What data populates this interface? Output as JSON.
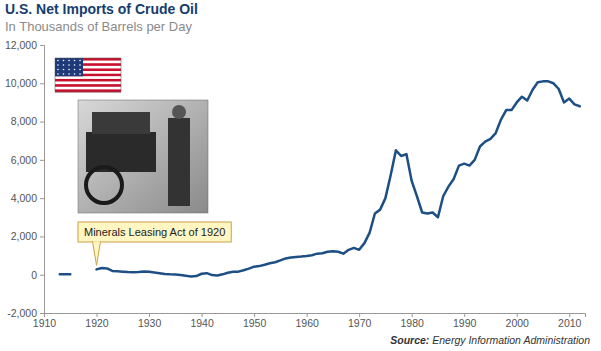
{
  "chart_data": {
    "type": "line",
    "title": "U.S. Net Imports of Crude Oil",
    "subtitle": "In Thousands of Barrels per Day",
    "source": "Source: Energy Information Administration",
    "color": "#1d4f85",
    "x": [
      1913,
      1914,
      1915,
      1916,
      1917,
      1918,
      1919,
      1920,
      1921,
      1922,
      1923,
      1924,
      1925,
      1926,
      1927,
      1928,
      1929,
      1930,
      1931,
      1932,
      1933,
      1934,
      1935,
      1936,
      1937,
      1938,
      1939,
      1940,
      1941,
      1942,
      1943,
      1944,
      1945,
      1946,
      1947,
      1948,
      1949,
      1950,
      1951,
      1952,
      1953,
      1954,
      1955,
      1956,
      1957,
      1958,
      1959,
      1960,
      1961,
      1962,
      1963,
      1964,
      1965,
      1966,
      1967,
      1968,
      1969,
      1970,
      1971,
      1972,
      1973,
      1974,
      1975,
      1976,
      1977,
      1978,
      1979,
      1980,
      1981,
      1982,
      1983,
      1984,
      1985,
      1986,
      1987,
      1988,
      1989,
      1990,
      1991,
      1992,
      1993,
      1994,
      1995,
      1996,
      1997,
      1998,
      1999,
      2000,
      2001,
      2002,
      2003,
      2004,
      2005,
      2006,
      2007,
      2008,
      2009,
      2010,
      2011,
      2012
    ],
    "values": [
      30,
      30,
      20,
      null,
      null,
      null,
      null,
      280,
      350,
      330,
      200,
      180,
      160,
      140,
      130,
      140,
      170,
      150,
      120,
      80,
      40,
      20,
      10,
      -20,
      -50,
      -90,
      -70,
      50,
      80,
      -20,
      -40,
      20,
      100,
      150,
      160,
      230,
      320,
      420,
      450,
      520,
      600,
      650,
      750,
      850,
      900,
      930,
      950,
      980,
      1020,
      1100,
      1120,
      1200,
      1230,
      1200,
      1100,
      1300,
      1400,
      1300,
      1650,
      2200,
      3200,
      3400,
      4000,
      5200,
      6500,
      6200,
      6300,
      4900,
      4100,
      3250,
      3200,
      3250,
      3000,
      4100,
      4600,
      5000,
      5700,
      5800,
      5700,
      6000,
      6700,
      6950,
      7100,
      7400,
      8100,
      8600,
      8600,
      9000,
      9300,
      9100,
      9650,
      10050,
      10100,
      10100,
      10000,
      9700,
      9000,
      9200,
      8900,
      8800
    ],
    "xlim": [
      1910,
      2013
    ],
    "xticks": [
      1910,
      1920,
      1930,
      1940,
      1950,
      1960,
      1970,
      1980,
      1990,
      2000,
      2010
    ],
    "ylim": [
      -2000,
      12000
    ],
    "yticks": [
      {
        "value": -2000,
        "label": "-2,000"
      },
      0,
      {
        "value": 2000,
        "label": "2,000"
      },
      {
        "value": 4000,
        "label": "4,000"
      },
      {
        "value": 6000,
        "label": "6,000"
      },
      {
        "value": 8000,
        "label": "8,000"
      },
      {
        "value": 10000,
        "label": "10,000"
      },
      {
        "value": 12000,
        "label": "12,000"
      }
    ],
    "grid": false,
    "annotations": [
      {
        "text": "Minerals Leasing Act of 1920",
        "x": 1920
      }
    ]
  }
}
